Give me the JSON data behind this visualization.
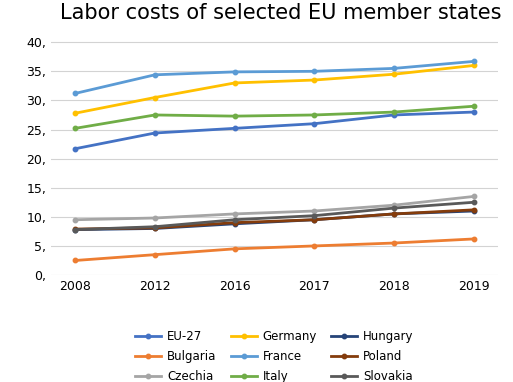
{
  "title": "Labor costs of selected EU member states",
  "years": [
    "2008",
    "2012",
    "2016",
    "2017",
    "2018",
    "2019"
  ],
  "series": {
    "EU-27": {
      "values": [
        21.7,
        24.4,
        25.2,
        26.0,
        27.5,
        28.0
      ],
      "color": "#4472C4",
      "lw": 2.0
    },
    "Bulgaria": {
      "values": [
        2.5,
        3.5,
        4.5,
        5.0,
        5.5,
        6.2
      ],
      "color": "#ED7D31",
      "lw": 2.0
    },
    "Czechia": {
      "values": [
        9.5,
        9.8,
        10.5,
        11.0,
        12.0,
        13.5
      ],
      "color": "#A5A5A5",
      "lw": 2.0
    },
    "Germany": {
      "values": [
        27.8,
        30.5,
        33.0,
        33.5,
        34.5,
        36.0
      ],
      "color": "#FFC000",
      "lw": 2.0
    },
    "France": {
      "values": [
        31.2,
        34.4,
        34.9,
        35.0,
        35.5,
        36.7
      ],
      "color": "#5B9BD5",
      "lw": 2.0
    },
    "Italy": {
      "values": [
        25.2,
        27.5,
        27.3,
        27.5,
        28.0,
        29.0
      ],
      "color": "#70AD47",
      "lw": 2.0
    },
    "Hungary": {
      "values": [
        7.8,
        8.0,
        8.8,
        9.5,
        10.5,
        11.0
      ],
      "color": "#264478",
      "lw": 2.0
    },
    "Poland": {
      "values": [
        7.9,
        8.1,
        9.0,
        9.5,
        10.5,
        11.2
      ],
      "color": "#843C0C",
      "lw": 2.0
    },
    "Slovakia": {
      "values": [
        7.8,
        8.3,
        9.5,
        10.2,
        11.5,
        12.5
      ],
      "color": "#595959",
      "lw": 2.0
    }
  },
  "ylim": [
    0,
    42
  ],
  "yticks": [
    0,
    5,
    10,
    15,
    20,
    25,
    30,
    35,
    40
  ],
  "ytick_labels": [
    "0,",
    "5,",
    "10,",
    "15,",
    "20,",
    "25,",
    "30,",
    "35,",
    "40,"
  ],
  "legend_order": [
    "EU-27",
    "Bulgaria",
    "Czechia",
    "Germany",
    "France",
    "Italy",
    "Hungary",
    "Poland",
    "Slovakia"
  ],
  "legend_ncol": 3,
  "background_color": "#FFFFFF",
  "grid_color": "#D3D3D3",
  "title_fontsize": 15,
  "tick_fontsize": 9,
  "legend_fontsize": 8.5
}
